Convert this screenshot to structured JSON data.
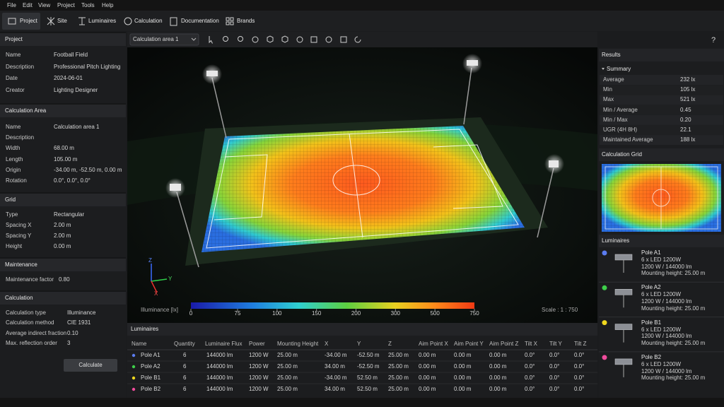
{
  "menu": [
    "File",
    "Edit",
    "View",
    "Project",
    "Tools",
    "Help"
  ],
  "tabs": [
    "Project",
    "Site",
    "Luminaires",
    "Calculation",
    "Documentation",
    "Brands"
  ],
  "left_panel": {
    "sections": [
      {
        "title": "Project",
        "rows": [
          {
            "label": "Name",
            "value": "Football Field"
          },
          {
            "label": "Description",
            "value": "Professional Pitch Lighting"
          },
          {
            "label": "Date",
            "value": "2024-06-01"
          },
          {
            "label": "Creator",
            "value": "Lighting Designer"
          }
        ]
      },
      {
        "title": "Calculation Area",
        "rows": [
          {
            "label": "Name",
            "value": "Calculation area 1"
          },
          {
            "label": "Description"
          },
          {
            "label": "Width",
            "value": "68.00 m"
          },
          {
            "label": "Length",
            "value": "105.00 m"
          },
          {
            "label": "Origin",
            "value": "-34.00 m, -52.50 m, 0.00 m"
          },
          {
            "label": "Rotation",
            "value": "0.0°, 0.0°, 0.0°"
          }
        ]
      },
      {
        "title": "Grid",
        "rows": [
          {
            "label": "Type",
            "value": "Rectangular"
          },
          {
            "label": "Spacing X",
            "value": "2.00 m"
          },
          {
            "label": "Spacing Y",
            "value": "2.00 m"
          },
          {
            "label": "Height",
            "value": "0.00 m"
          }
        ]
      },
      {
        "title": "Maintenance",
        "rows": [
          {
            "label": "Maintenance factor",
            "value": "0.80"
          }
        ]
      },
      {
        "title": "Calculation",
        "rows": [
          {
            "label": "Calculation type",
            "value": "Illuminance"
          },
          {
            "label": "Calculation method",
            "value": "CIE 1931"
          },
          {
            "label": "Average indirect fraction",
            "value": "0.10"
          },
          {
            "label": "Max. reflection order",
            "value": "3"
          }
        ]
      }
    ],
    "button": "Calculate"
  },
  "viewport": {
    "area_select": "Calculation area 1",
    "help": "?",
    "axes": [
      "Z",
      "Y",
      "X"
    ],
    "legend": {
      "label": "Illuminance [lx]",
      "ticks": [
        0,
        75,
        100,
        150,
        200,
        300,
        500,
        750
      ]
    },
    "scale": "Scale : 1 : 750"
  },
  "luminaires_table": {
    "title": "Luminaires",
    "columns": [
      "Name",
      "Quantity",
      "Luminaire Flux",
      "Power",
      "Mounting Height",
      "X",
      "Y",
      "Z",
      "Aim Point X",
      "Aim Point Y",
      "Aim Point Z",
      "Tilt X",
      "Tilt Y",
      "Tilt Z"
    ],
    "colors": [
      "#5b7cf0",
      "#3ecf4a",
      "#f0d81e",
      "#f04c9c"
    ],
    "rows": [
      [
        "Pole A1",
        6,
        "144000 lm",
        "1200 W",
        "25.00 m",
        "-34.00 m",
        "-52.50 m",
        "25.00 m",
        "0.00 m",
        "0.00 m",
        "0.00 m",
        "0.0°",
        "0.0°",
        "0.0°"
      ],
      [
        "Pole A2",
        6,
        "144000 lm",
        "1200 W",
        "25.00 m",
        "34.00 m",
        "-52.50 m",
        "25.00 m",
        "0.00 m",
        "0.00 m",
        "0.00 m",
        "0.0°",
        "0.0°",
        "0.0°"
      ],
      [
        "Pole B1",
        6,
        "144000 lm",
        "1200 W",
        "25.00 m",
        "-34.00 m",
        "52.50 m",
        "25.00 m",
        "0.00 m",
        "0.00 m",
        "0.00 m",
        "0.0°",
        "0.0°",
        "0.0°"
      ],
      [
        "Pole B2",
        6,
        "144000 lm",
        "1200 W",
        "25.00 m",
        "34.00 m",
        "52.50 m",
        "25.00 m",
        "0.00 m",
        "0.00 m",
        "0.00 m",
        "0.0°",
        "0.0°",
        "0.0°"
      ]
    ]
  },
  "results": {
    "title": "Results",
    "summary": "Summary",
    "rows": [
      {
        "label": "Average",
        "value": "232 lx"
      },
      {
        "label": "Min",
        "value": "105 lx"
      },
      {
        "label": "Max",
        "value": "521 lx"
      },
      {
        "label": "Min / Average",
        "value": "0.45"
      },
      {
        "label": "Min / Max",
        "value": "0.20"
      },
      {
        "label": "UGR (4H 8H)",
        "value": "22.1"
      },
      {
        "label": "Maintained Average",
        "value": "188 lx"
      }
    ]
  },
  "calculation_grid": {
    "title": "Calculation Grid"
  },
  "luminaires_list": {
    "title": "Luminaires",
    "items": [
      {
        "name": "Pole A1",
        "color": "#5b7cf0",
        "lines": [
          "6 x LED 1200W",
          "1200 W / 144000 lm",
          "Mounting height: 25.00 m"
        ]
      },
      {
        "name": "Pole A2",
        "color": "#3ecf4a",
        "lines": [
          "6 x LED 1200W",
          "1200 W / 144000 lm",
          "Mounting height: 25.00 m"
        ]
      },
      {
        "name": "Pole B1",
        "color": "#f0d81e",
        "lines": [
          "6 x LED 1200W",
          "1200 W / 144000 lm",
          "Mounting height: 25.00 m"
        ]
      },
      {
        "name": "Pole B2",
        "color": "#f04c9c",
        "lines": [
          "6 x LED 1200W",
          "1200 W / 144000 lm",
          "Mounting height: 25.00 m"
        ]
      }
    ]
  }
}
